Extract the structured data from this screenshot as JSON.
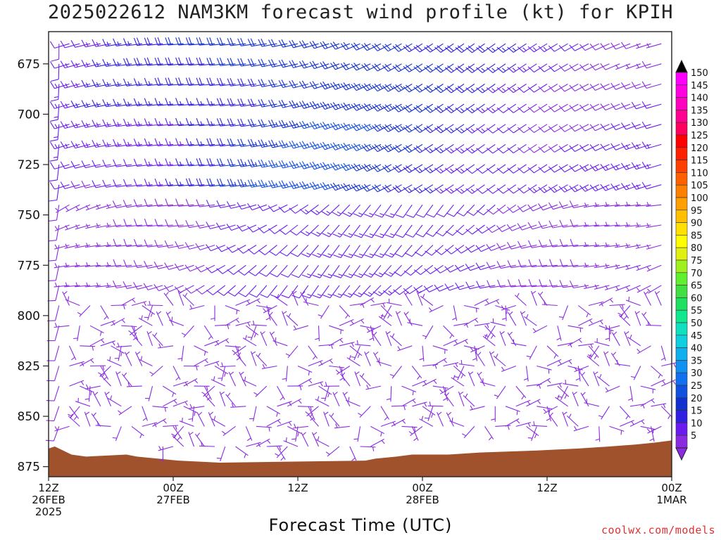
{
  "chart_data": {
    "type": "wind-barb time-height cross section",
    "title": "2025022612 NAM3KM forecast wind profile (kt) for KPIH",
    "xlabel": "Forecast Time (UTC)",
    "ylabel": "",
    "credit": "coolwx.com/models",
    "y_axis": {
      "units": "hPa",
      "ticks": [
        675,
        700,
        725,
        750,
        775,
        800,
        825,
        850,
        875
      ],
      "range": [
        659,
        880
      ],
      "inverted": true
    },
    "x_axis": {
      "range_hours": [
        0,
        60
      ],
      "ticks": [
        {
          "hour": 0,
          "lines": [
            "12Z",
            "26FEB",
            "2025"
          ]
        },
        {
          "hour": 12,
          "lines": [
            "00Z",
            "27FEB"
          ]
        },
        {
          "hour": 24,
          "lines": [
            "12Z"
          ]
        },
        {
          "hour": 36,
          "lines": [
            "00Z",
            "28FEB"
          ]
        },
        {
          "hour": 48,
          "lines": [
            "12Z"
          ]
        },
        {
          "hour": 60,
          "lines": [
            "00Z",
            "1MAR"
          ]
        }
      ]
    },
    "colorbar": {
      "levels_kt": [
        5,
        10,
        15,
        20,
        25,
        30,
        35,
        40,
        45,
        50,
        55,
        60,
        65,
        70,
        75,
        80,
        85,
        90,
        95,
        100,
        105,
        110,
        115,
        120,
        125,
        130,
        135,
        140,
        145,
        150
      ],
      "colors": [
        "#8a2be2",
        "#6a1cf0",
        "#3020e0",
        "#1030d0",
        "#1050e0",
        "#1070f0",
        "#1090f0",
        "#10b0f0",
        "#10d0e0",
        "#10e0c0",
        "#10e890",
        "#20e060",
        "#40e040",
        "#60f030",
        "#a0f020",
        "#e0f010",
        "#ffff00",
        "#ffe000",
        "#ffc000",
        "#ffa000",
        "#ff8000",
        "#ff6000",
        "#ff4000",
        "#ff2000",
        "#ff0000",
        "#ff0060",
        "#ff0090",
        "#ff00c0",
        "#ff00e0",
        "#ff00ff"
      ]
    },
    "terrain_surface_hPa": [
      [
        0,
        866
      ],
      [
        0.6,
        865
      ],
      [
        1.4,
        867
      ],
      [
        2.2,
        869
      ],
      [
        3.6,
        870
      ],
      [
        7.5,
        869
      ],
      [
        8.5,
        870
      ],
      [
        12.5,
        872
      ],
      [
        16.5,
        873
      ],
      [
        30.5,
        872
      ],
      [
        31.5,
        871
      ],
      [
        33.5,
        870
      ],
      [
        35,
        869
      ],
      [
        38.5,
        869
      ],
      [
        41.5,
        868
      ],
      [
        47,
        867
      ],
      [
        51,
        866
      ],
      [
        54,
        865
      ],
      [
        56.5,
        864
      ],
      [
        58.5,
        863
      ],
      [
        60,
        862
      ]
    ],
    "wind_summary": [
      {
        "level_range_hPa": [
          660,
          745
        ],
        "speed_kt": "10-25",
        "direction": "west-southwest, strongest 20-30 h"
      },
      {
        "level_range_hPa": [
          745,
          790
        ],
        "speed_kt": "5-15",
        "direction": "west to southwest"
      },
      {
        "level_range_hPa": [
          790,
          870
        ],
        "speed_kt": "0-10",
        "direction": "light and variable"
      }
    ]
  }
}
